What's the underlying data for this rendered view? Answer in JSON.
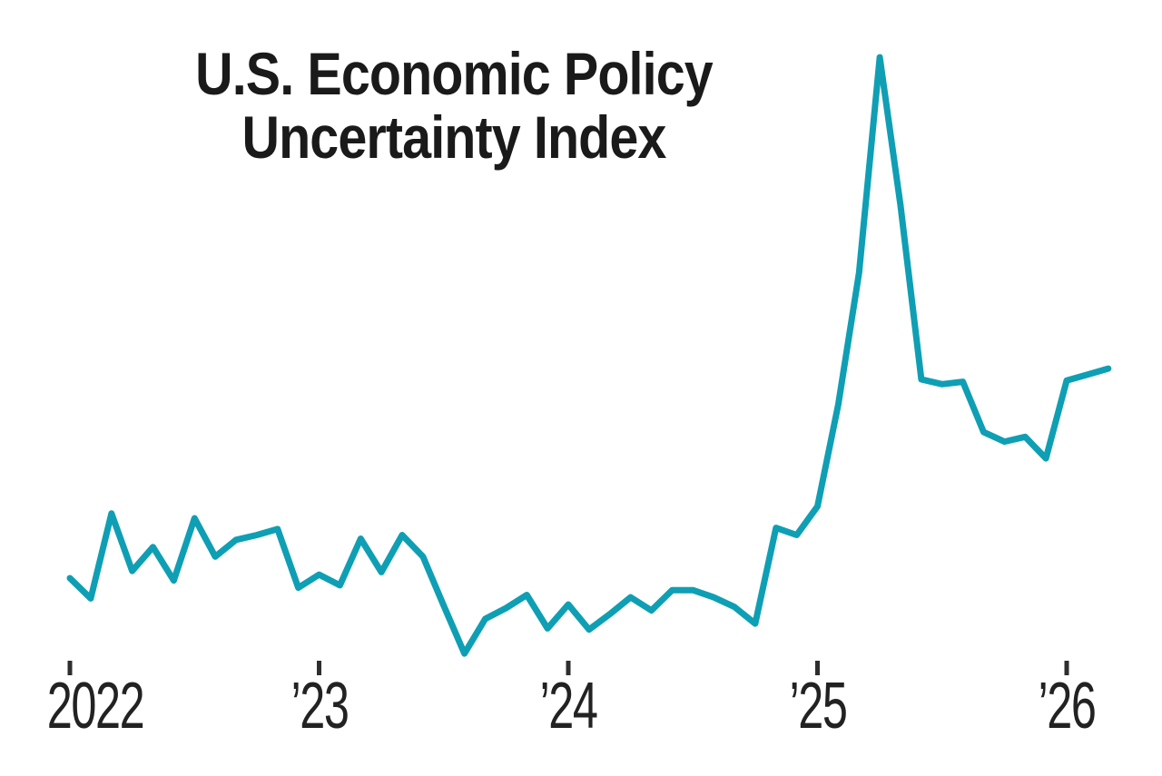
{
  "title": {
    "line1": "U.S. Economic Policy",
    "line2": "Uncertainty Index"
  },
  "chart_data": {
    "type": "line",
    "title": "U.S. Economic Policy Uncertainty Index",
    "series_name": "U.S. Economic Policy Uncertainty Index",
    "xlabel": "",
    "ylabel": "",
    "grid": false,
    "legend": "none",
    "y_axis_shown": false,
    "ylim_estimated": [
      60,
      620
    ],
    "line_color": "#0f9fb4",
    "tick_color": "#2e2e2e",
    "text_color": "#222222",
    "title_color": "#1a1a1a",
    "x": [
      "2022-01",
      "2022-02",
      "2022-03",
      "2022-04",
      "2022-05",
      "2022-06",
      "2022-07",
      "2022-08",
      "2022-09",
      "2022-10",
      "2022-11",
      "2022-12",
      "2023-01",
      "2023-02",
      "2023-03",
      "2023-04",
      "2023-05",
      "2023-06",
      "2023-07",
      "2023-08",
      "2023-09",
      "2023-10",
      "2023-11",
      "2023-12",
      "2024-01",
      "2024-02",
      "2024-03",
      "2024-04",
      "2024-05",
      "2024-06",
      "2024-07",
      "2024-08",
      "2024-09",
      "2024-10",
      "2024-11",
      "2024-12",
      "2025-01",
      "2025-02",
      "2025-03",
      "2025-04",
      "2025-05",
      "2025-06",
      "2025-07",
      "2025-08",
      "2025-09",
      "2025-10",
      "2025-11",
      "2025-12",
      "2026-01",
      "2026-02",
      "2026-03"
    ],
    "values": [
      155,
      138,
      209,
      161,
      181,
      153,
      205,
      173,
      187,
      191,
      196,
      147,
      158,
      149,
      188,
      160,
      191,
      173,
      132,
      92,
      121,
      130,
      141,
      113,
      133,
      112,
      125,
      139,
      128,
      145,
      145,
      139,
      131,
      117,
      197,
      191,
      215,
      300,
      410,
      590,
      466,
      321,
      317,
      319,
      277,
      269,
      273,
      255,
      320,
      325,
      330
    ],
    "x_ticks": [
      {
        "label": "2022",
        "month_index": 0
      },
      {
        "label": "’23",
        "month_index": 12
      },
      {
        "label": "’24",
        "month_index": 24
      },
      {
        "label": "’25",
        "month_index": 36
      },
      {
        "label": "’26",
        "month_index": 48
      }
    ]
  }
}
